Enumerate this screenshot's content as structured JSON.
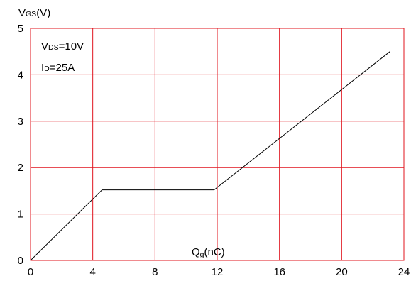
{
  "chart_data": {
    "type": "line",
    "ylabel_main": "V",
    "ylabel_sub": "GS",
    "ylabel_unit": "(V)",
    "xlabel_main": "Q",
    "xlabel_sub": "g",
    "xlabel_unit": "(nC)",
    "conditions": [
      {
        "main": "V",
        "sub": "DS",
        "value": "=10V"
      },
      {
        "main": "I",
        "sub": "D",
        "value": "=25A"
      }
    ],
    "xlim": [
      0,
      24
    ],
    "ylim": [
      0,
      5
    ],
    "x_ticks": [
      0,
      4,
      8,
      12,
      16,
      20,
      24
    ],
    "x_tick_labels": [
      "0",
      "4",
      "8",
      "12",
      "16",
      "20",
      "24"
    ],
    "y_ticks": [
      0,
      1,
      2,
      3,
      4,
      5
    ],
    "y_tick_labels": [
      "0",
      "1",
      "2",
      "3",
      "4",
      "5"
    ],
    "grid": true,
    "grid_color": "#e0141e",
    "line_color": "#000000",
    "series": [
      {
        "x": [
          0,
          4.6,
          11.8,
          23.1
        ],
        "y": [
          0,
          1.52,
          1.52,
          4.5
        ]
      }
    ]
  }
}
